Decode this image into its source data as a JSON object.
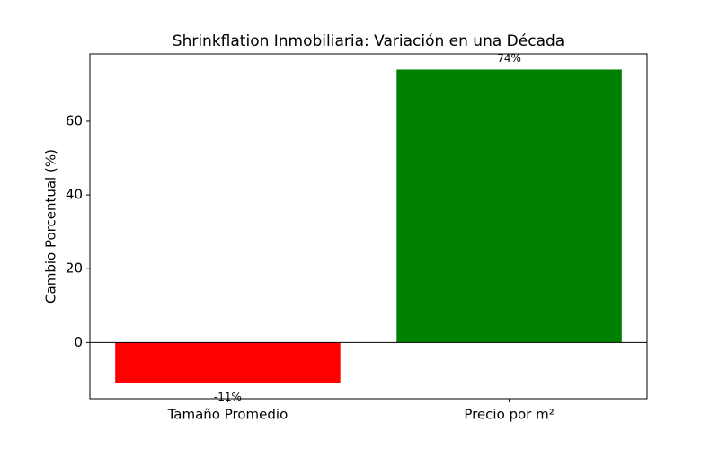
{
  "chart_data": {
    "type": "bar",
    "title": "Shrinkflation Inmobiliaria: Variación en una Década",
    "y_label": "Cambio Porcentual (%)",
    "categories": [
      "Tamaño Promedio",
      "Precio por m²"
    ],
    "values": [
      -11,
      74
    ],
    "value_labels": [
      "-11%",
      "74%"
    ],
    "colors": [
      "#ff0000",
      "#008000"
    ],
    "ylim": [
      -15.25,
      78.25
    ],
    "yticks": [
      0,
      20,
      40,
      60
    ],
    "grid": false
  }
}
